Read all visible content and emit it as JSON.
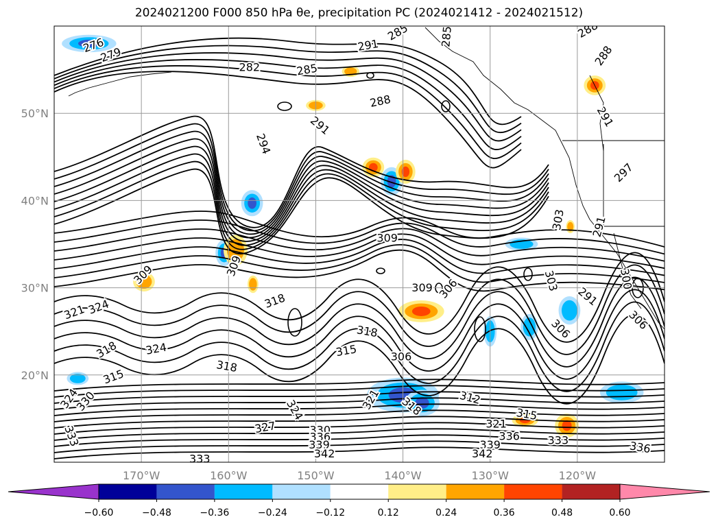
{
  "title": "2024021200 F000 850 hPa θe, precipitation PC (2024021412 - 2024021512)",
  "chart_data": {
    "type": "map-contour",
    "title": "2024021200 F000 850 hPa θe, precipitation PC (2024021412 - 2024021512)",
    "lon_range": [
      -180,
      -110
    ],
    "lat_range": [
      10,
      60
    ],
    "lat_ticks": [
      {
        "value": 20,
        "label": "20°N"
      },
      {
        "value": 30,
        "label": "30°N"
      },
      {
        "value": 40,
        "label": "40°N"
      },
      {
        "value": 50,
        "label": "50°N"
      }
    ],
    "lon_ticks": [
      {
        "value": -170,
        "label": "170°W"
      },
      {
        "value": -160,
        "label": "160°W"
      },
      {
        "value": -150,
        "label": "150°W"
      },
      {
        "value": -140,
        "label": "140°W"
      },
      {
        "value": -130,
        "label": "130°W"
      },
      {
        "value": -120,
        "label": "120°W"
      }
    ],
    "grid": true,
    "contour_field": "850 hPa θe",
    "contour_labels": [
      {
        "text": "276",
        "lon": -175.5,
        "lat": 57.8,
        "rot": -20
      },
      {
        "text": "279",
        "lon": -173.5,
        "lat": 56.7,
        "rot": -20
      },
      {
        "text": "282",
        "lon": -157.6,
        "lat": 55.3,
        "rot": 0
      },
      {
        "text": "285",
        "lon": -151.0,
        "lat": 55.0,
        "rot": -10
      },
      {
        "text": "285",
        "lon": -140.6,
        "lat": 59.3,
        "rot": -30
      },
      {
        "text": "285",
        "lon": -135.0,
        "lat": 58.8,
        "rot": -85
      },
      {
        "text": "288",
        "lon": -142.6,
        "lat": 51.4,
        "rot": -12
      },
      {
        "text": "288",
        "lon": -117.0,
        "lat": 56.6,
        "rot": -55
      },
      {
        "text": "288",
        "lon": -118.8,
        "lat": 59.6,
        "rot": -30
      },
      {
        "text": "291",
        "lon": -144.0,
        "lat": 57.8,
        "rot": -10
      },
      {
        "text": "291",
        "lon": -149.5,
        "lat": 48.6,
        "rot": 40
      },
      {
        "text": "291",
        "lon": -116.8,
        "lat": 49.6,
        "rot": 60
      },
      {
        "text": "291",
        "lon": -117.5,
        "lat": 37.0,
        "rot": -75
      },
      {
        "text": "291",
        "lon": -118.8,
        "lat": 29.0,
        "rot": 40
      },
      {
        "text": "294",
        "lon": -156.0,
        "lat": 46.5,
        "rot": 70
      },
      {
        "text": "297",
        "lon": -114.7,
        "lat": 43.2,
        "rot": -45
      },
      {
        "text": "300",
        "lon": -114.4,
        "lat": 31.0,
        "rot": 80
      },
      {
        "text": "303",
        "lon": -122.2,
        "lat": 37.8,
        "rot": -80
      },
      {
        "text": "303",
        "lon": -123.0,
        "lat": 30.8,
        "rot": 75
      },
      {
        "text": "306",
        "lon": -140.2,
        "lat": 22.1,
        "rot": 0
      },
      {
        "text": "306",
        "lon": -134.8,
        "lat": 29.9,
        "rot": -50
      },
      {
        "text": "306",
        "lon": -121.9,
        "lat": 25.3,
        "rot": 45
      },
      {
        "text": "306",
        "lon": -113.0,
        "lat": 26.3,
        "rot": 45
      },
      {
        "text": "309",
        "lon": -141.8,
        "lat": 35.7,
        "rot": 0
      },
      {
        "text": "309",
        "lon": -169.8,
        "lat": 31.5,
        "rot": -45
      },
      {
        "text": "309",
        "lon": -159.4,
        "lat": 32.5,
        "rot": -70
      },
      {
        "text": "309",
        "lon": -137.8,
        "lat": 30.0,
        "rot": 0
      },
      {
        "text": "312",
        "lon": -132.3,
        "lat": 17.4,
        "rot": 15
      },
      {
        "text": "315",
        "lon": -146.5,
        "lat": 22.8,
        "rot": -10
      },
      {
        "text": "315",
        "lon": -125.8,
        "lat": 15.5,
        "rot": 10
      },
      {
        "text": "315",
        "lon": -173.2,
        "lat": 19.8,
        "rot": -20
      },
      {
        "text": "318",
        "lon": -154.7,
        "lat": 28.5,
        "rot": -20
      },
      {
        "text": "318",
        "lon": -144.1,
        "lat": 25.0,
        "rot": 10
      },
      {
        "text": "318",
        "lon": -174.0,
        "lat": 22.9,
        "rot": -30
      },
      {
        "text": "318",
        "lon": -160.2,
        "lat": 21.0,
        "rot": 10
      },
      {
        "text": "318",
        "lon": -139.0,
        "lat": 16.4,
        "rot": 40
      },
      {
        "text": "321",
        "lon": -177.7,
        "lat": 27.2,
        "rot": -20
      },
      {
        "text": "321",
        "lon": -143.7,
        "lat": 17.2,
        "rot": -60
      },
      {
        "text": "321",
        "lon": -129.3,
        "lat": 14.4,
        "rot": 0
      },
      {
        "text": "324",
        "lon": -174.9,
        "lat": 27.8,
        "rot": -20
      },
      {
        "text": "324",
        "lon": -168.3,
        "lat": 23.0,
        "rot": -10
      },
      {
        "text": "324",
        "lon": -178.3,
        "lat": 17.3,
        "rot": -55
      },
      {
        "text": "324",
        "lon": -152.4,
        "lat": 16.0,
        "rot": 60
      },
      {
        "text": "327",
        "lon": -155.8,
        "lat": 14.0,
        "rot": -10
      },
      {
        "text": "330",
        "lon": -176.4,
        "lat": 17.0,
        "rot": -50
      },
      {
        "text": "330",
        "lon": -149.5,
        "lat": 13.7,
        "rot": 0
      },
      {
        "text": "333",
        "lon": -178.0,
        "lat": 13.0,
        "rot": 70
      },
      {
        "text": "333",
        "lon": -163.3,
        "lat": 10.4,
        "rot": 0
      },
      {
        "text": "333",
        "lon": -122.2,
        "lat": 12.5,
        "rot": 0
      },
      {
        "text": "336",
        "lon": -149.5,
        "lat": 12.9,
        "rot": 0
      },
      {
        "text": "336",
        "lon": -127.8,
        "lat": 13.0,
        "rot": 0
      },
      {
        "text": "336",
        "lon": -112.8,
        "lat": 11.7,
        "rot": 10
      },
      {
        "text": "339",
        "lon": -149.6,
        "lat": 12.0,
        "rot": 0
      },
      {
        "text": "339",
        "lon": -130.0,
        "lat": 12.0,
        "rot": 0
      },
      {
        "text": "342",
        "lon": -149.0,
        "lat": 11.0,
        "rot": 0
      },
      {
        "text": "342",
        "lon": -130.9,
        "lat": 11.0,
        "rot": 0
      }
    ],
    "shading_field": "precipitation PC",
    "colorbar": {
      "levels": [
        -0.6,
        -0.48,
        -0.36,
        -0.24,
        -0.12,
        0.12,
        0.24,
        0.36,
        0.48,
        0.6
      ],
      "tick_labels": [
        "−0.60",
        "−0.48",
        "−0.36",
        "−0.24",
        "−0.12",
        "0.12",
        "0.24",
        "0.36",
        "0.48",
        "0.60"
      ],
      "colors": [
        "#9933cc",
        "#000099",
        "#3355cc",
        "#00bbff",
        "#b0e0ff",
        "#ffffff",
        "#ffee88",
        "#ffa500",
        "#ff4400",
        "#b22222",
        "#ff88aa"
      ],
      "extend": "both"
    },
    "shaded_blobs": [
      {
        "lon": -176.0,
        "lat": 58.0,
        "rx": 2.5,
        "ry": 0.8,
        "v": -0.4
      },
      {
        "lon": -160.5,
        "lat": 34.0,
        "rx": 0.8,
        "ry": 1.2,
        "v": -0.4
      },
      {
        "lon": -159.2,
        "lat": 34.3,
        "rx": 1.1,
        "ry": 1.4,
        "v": 0.3
      },
      {
        "lon": -157.3,
        "lat": 39.7,
        "rx": 1.0,
        "ry": 1.2,
        "v": -0.45
      },
      {
        "lon": -141.3,
        "lat": 42.2,
        "rx": 1.0,
        "ry": 1.3,
        "v": -0.4
      },
      {
        "lon": -143.4,
        "lat": 43.8,
        "rx": 1.0,
        "ry": 0.9,
        "v": 0.45
      },
      {
        "lon": -139.7,
        "lat": 43.3,
        "rx": 0.9,
        "ry": 1.1,
        "v": 0.4
      },
      {
        "lon": -137.9,
        "lat": 27.3,
        "rx": 2.1,
        "ry": 1.0,
        "v": 0.4
      },
      {
        "lon": -140.0,
        "lat": 17.7,
        "rx": 3.3,
        "ry": 1.6,
        "v": -0.45
      },
      {
        "lon": -137.8,
        "lat": 16.8,
        "rx": 1.6,
        "ry": 1.2,
        "v": -0.4
      },
      {
        "lon": -118.0,
        "lat": 53.2,
        "rx": 1.0,
        "ry": 0.9,
        "v": 0.4
      },
      {
        "lon": -126.4,
        "lat": 35.0,
        "rx": 1.5,
        "ry": 0.6,
        "v": -0.3
      },
      {
        "lon": -120.9,
        "lat": 27.4,
        "rx": 1.0,
        "ry": 1.3,
        "v": -0.3
      },
      {
        "lon": -126.0,
        "lat": 14.8,
        "rx": 1.2,
        "ry": 0.6,
        "v": 0.4
      },
      {
        "lon": -121.2,
        "lat": 14.2,
        "rx": 1.1,
        "ry": 1.1,
        "v": 0.45
      },
      {
        "lon": -114.9,
        "lat": 18.0,
        "rx": 2.0,
        "ry": 1.0,
        "v": -0.3
      },
      {
        "lon": -169.7,
        "lat": 30.7,
        "rx": 1.0,
        "ry": 0.9,
        "v": 0.3
      },
      {
        "lon": -177.3,
        "lat": 19.6,
        "rx": 1.0,
        "ry": 0.6,
        "v": -0.3
      },
      {
        "lon": -157.2,
        "lat": 30.4,
        "rx": 0.5,
        "ry": 0.8,
        "v": 0.35
      },
      {
        "lon": -130.0,
        "lat": 25.0,
        "rx": 0.6,
        "ry": 1.4,
        "v": -0.3
      },
      {
        "lon": -125.5,
        "lat": 25.5,
        "rx": 0.8,
        "ry": 1.2,
        "v": -0.3
      },
      {
        "lon": -120.8,
        "lat": 37.0,
        "rx": 0.4,
        "ry": 0.6,
        "v": 0.25
      },
      {
        "lon": -150.0,
        "lat": 50.9,
        "rx": 0.9,
        "ry": 0.5,
        "v": 0.25
      },
      {
        "lon": -146.0,
        "lat": 54.8,
        "rx": 0.8,
        "ry": 0.5,
        "v": 0.25
      }
    ]
  }
}
